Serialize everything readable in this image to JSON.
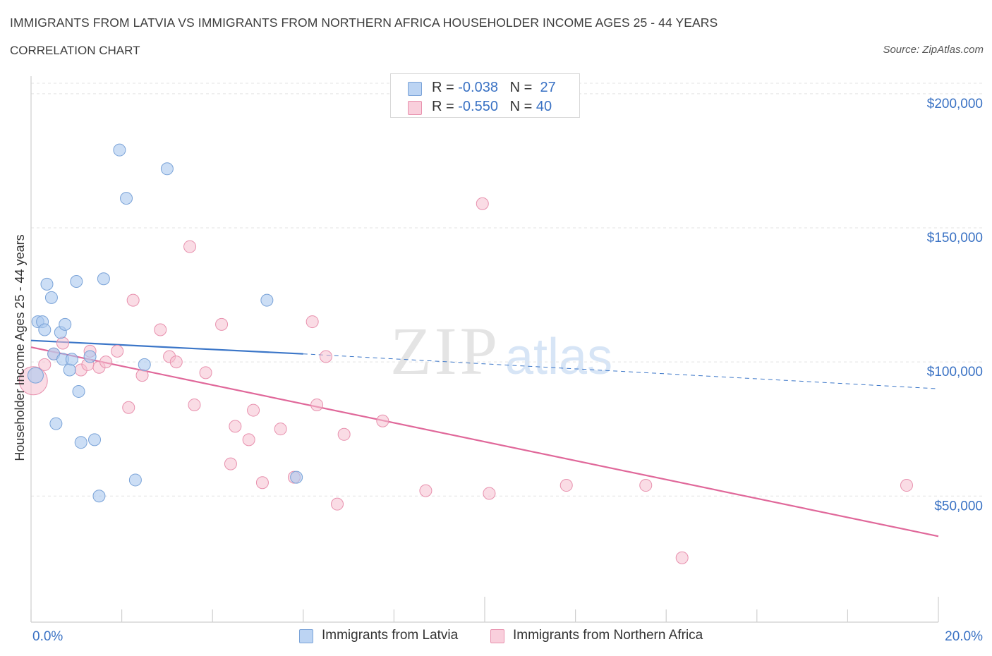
{
  "header": {
    "title": "IMMIGRANTS FROM LATVIA VS IMMIGRANTS FROM NORTHERN AFRICA HOUSEHOLDER INCOME AGES 25 - 44 YEARS",
    "subtitle": "CORRELATION CHART",
    "source": "Source: ZipAtlas.com"
  },
  "legend_stats": [
    {
      "r_label": "R =",
      "r_value": "-0.038",
      "n_label": "N =",
      "n_value": "27"
    },
    {
      "r_label": "R =",
      "r_value": "-0.550",
      "n_label": "N =",
      "n_value": "40"
    }
  ],
  "watermark": {
    "zip": "ZIP",
    "atlas": "atlas"
  },
  "colors": {
    "latvia_fill": "#aac8ee",
    "latvia_stroke": "#7aa3d8",
    "latvia_line": "#3b76c8",
    "nafrica_fill": "#f6bfd0",
    "nafrica_stroke": "#e891ae",
    "nafrica_line": "#e0689a",
    "axis_label": "#3a72c4",
    "grid": "#e3e3e3"
  },
  "chart_data": {
    "type": "scatter",
    "xlabel": "",
    "ylabel": "Householder Income Ages 25 - 44 years",
    "x_tick_labels": [
      "0.0%",
      "20.0%"
    ],
    "y_tick_labels": [
      "$50,000",
      "$100,000",
      "$150,000",
      "$200,000"
    ],
    "y_ticks": [
      50000,
      100000,
      150000,
      200000
    ],
    "xlim": [
      0,
      20
    ],
    "ylim": [
      3000,
      206000
    ],
    "grid": true,
    "legend_position": "bottom",
    "series": [
      {
        "name": "Immigrants from Latvia",
        "points": [
          [
            0.1,
            95000
          ],
          [
            0.15,
            115000
          ],
          [
            0.25,
            115000
          ],
          [
            0.3,
            112000
          ],
          [
            0.35,
            129000
          ],
          [
            0.45,
            124000
          ],
          [
            0.5,
            103000
          ],
          [
            0.55,
            77000
          ],
          [
            0.65,
            111000
          ],
          [
            0.7,
            101000
          ],
          [
            0.75,
            114000
          ],
          [
            0.85,
            97000
          ],
          [
            0.9,
            101000
          ],
          [
            1.0,
            130000
          ],
          [
            1.05,
            89000
          ],
          [
            1.1,
            70000
          ],
          [
            1.4,
            71000
          ],
          [
            1.3,
            102000
          ],
          [
            1.5,
            50000
          ],
          [
            1.6,
            131000
          ],
          [
            1.95,
            179000
          ],
          [
            2.1,
            161000
          ],
          [
            2.3,
            56000
          ],
          [
            2.5,
            99000
          ],
          [
            3.0,
            172000
          ],
          [
            5.2,
            123000
          ],
          [
            5.85,
            57000
          ]
        ],
        "trend": {
          "x": [
            0,
            6
          ],
          "y": [
            108000,
            103000
          ]
        },
        "trend_extended": {
          "x": [
            6,
            20
          ],
          "y": [
            103000,
            90000
          ]
        }
      },
      {
        "name": "Immigrants from Northern Africa",
        "points": [
          [
            0.05,
            93000
          ],
          [
            0.3,
            99000
          ],
          [
            0.5,
            103000
          ],
          [
            0.7,
            107000
          ],
          [
            1.1,
            97000
          ],
          [
            1.25,
            99000
          ],
          [
            1.3,
            104000
          ],
          [
            1.5,
            98000
          ],
          [
            1.65,
            100000
          ],
          [
            1.9,
            104000
          ],
          [
            2.15,
            83000
          ],
          [
            2.25,
            123000
          ],
          [
            2.45,
            95000
          ],
          [
            2.85,
            112000
          ],
          [
            3.05,
            102000
          ],
          [
            3.2,
            100000
          ],
          [
            3.5,
            143000
          ],
          [
            3.6,
            84000
          ],
          [
            3.85,
            96000
          ],
          [
            4.2,
            114000
          ],
          [
            4.5,
            76000
          ],
          [
            4.4,
            62000
          ],
          [
            4.9,
            82000
          ],
          [
            4.8,
            71000
          ],
          [
            5.1,
            55000
          ],
          [
            5.5,
            75000
          ],
          [
            5.8,
            57000
          ],
          [
            6.2,
            115000
          ],
          [
            6.3,
            84000
          ],
          [
            6.5,
            102000
          ],
          [
            6.75,
            47000
          ],
          [
            6.9,
            73000
          ],
          [
            7.75,
            78000
          ],
          [
            8.7,
            52000
          ],
          [
            9.95,
            159000
          ],
          [
            10.1,
            51000
          ],
          [
            11.8,
            54000
          ],
          [
            13.55,
            54000
          ],
          [
            14.35,
            27000
          ],
          [
            19.3,
            54000
          ]
        ],
        "trend": {
          "x": [
            0,
            20
          ],
          "y": [
            105500,
            35000
          ]
        }
      }
    ]
  },
  "bottom_legend": [
    {
      "label": "Immigrants from Latvia"
    },
    {
      "label": "Immigrants from Northern Africa"
    }
  ]
}
